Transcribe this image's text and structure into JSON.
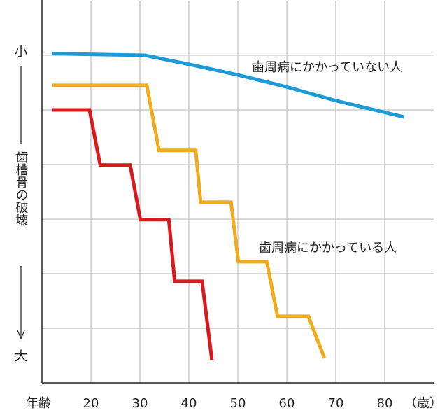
{
  "chart_data": {
    "type": "line",
    "xlabel": "年齢",
    "xunit": "（歳）",
    "ylabel": "歯槽骨の破壊",
    "ylabel_top": "小",
    "ylabel_bottom": "大",
    "xlim": [
      10,
      90
    ],
    "xticks": [
      20,
      30,
      40,
      50,
      60,
      70,
      80
    ],
    "ylim": [
      0,
      7
    ],
    "ygrid": [
      1,
      2,
      3,
      4,
      5,
      6
    ],
    "grid": true,
    "series": [
      {
        "name": "歯周病にかかっていない人",
        "color": "#1e9ad6",
        "x": [
          12.1,
          31,
          40.3,
          50,
          60,
          70,
          84
        ],
        "values": [
          6.03,
          6.0,
          5.83,
          5.64,
          5.42,
          5.17,
          4.87
        ]
      },
      {
        "name": "歯周病にかかっている人",
        "color": "#f0aa1e",
        "x": [
          12.1,
          31.4,
          33.9,
          41.4,
          42.4,
          48.6,
          50.1,
          55.9,
          58.1,
          64.4,
          67.7
        ],
        "values": [
          5.45,
          5.45,
          4.26,
          4.26,
          3.31,
          3.31,
          2.22,
          2.22,
          1.22,
          1.22,
          0.45
        ]
      },
      {
        "name": "",
        "color": "#d71920",
        "x": [
          12.1,
          19.7,
          21.9,
          28.0,
          30.1,
          35.9,
          37.1,
          42.7,
          44.7
        ],
        "values": [
          5.0,
          5.0,
          3.99,
          3.99,
          2.99,
          2.99,
          1.86,
          1.86,
          0.42
        ]
      }
    ]
  }
}
